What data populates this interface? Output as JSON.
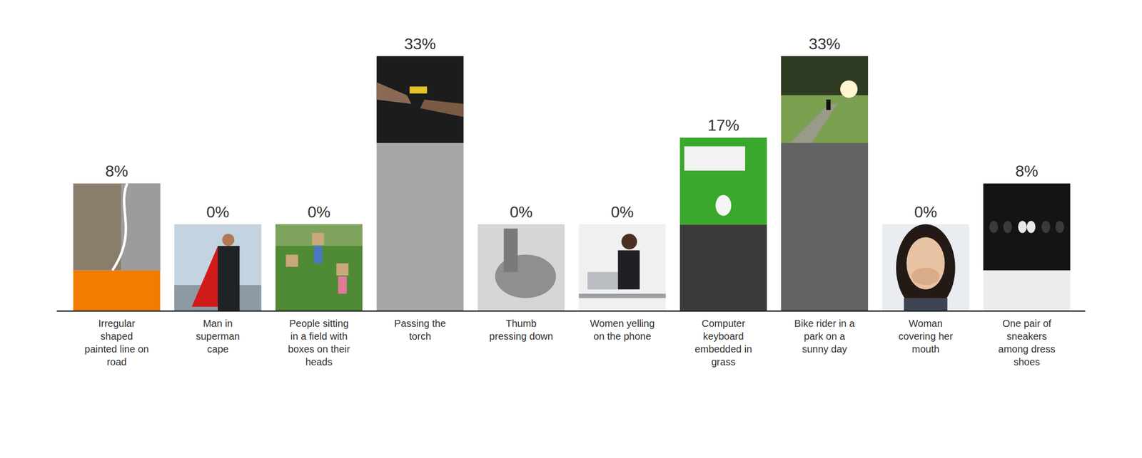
{
  "chart_data": {
    "type": "bar",
    "categories": [
      "Irregular shaped painted line on road",
      "Man in superman cape",
      "People sitting in a field with boxes on their heads",
      "Passing the torch",
      "Thumb pressing down",
      "Women yelling on the phone",
      "Computer keyboard embedded in grass",
      "Bike rider in a park on a sunny day",
      "Woman covering her mouth",
      "One pair of sneakers among dress shoes"
    ],
    "values": [
      8,
      0,
      0,
      33,
      0,
      0,
      17,
      33,
      0,
      8
    ],
    "value_labels": [
      "8%",
      "0%",
      "0%",
      "33%",
      "0%",
      "0%",
      "17%",
      "33%",
      "0%",
      "8%"
    ],
    "colors": [
      "#f07c00",
      "#9a9a9a",
      "#9a9a9a",
      "#a6a6a6",
      "#9a9a9a",
      "#9a9a9a",
      "#3a3a3a",
      "#636363",
      "#9a9a9a",
      "#ececec"
    ],
    "ylim": [
      0,
      33
    ],
    "grid": false,
    "data_labels": true,
    "tick_labels": "x"
  }
}
